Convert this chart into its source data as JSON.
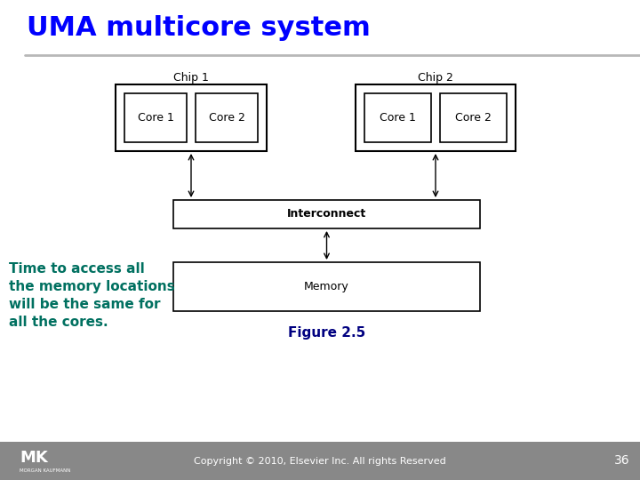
{
  "title": "UMA multicore system",
  "title_color": "#0000FF",
  "title_fontsize": 22,
  "bg_color": "#FFFFFF",
  "header_line_color": "#888888",
  "chip1_label": "Chip 1",
  "chip2_label": "Chip 2",
  "core1_chip1_label": "Core 1",
  "core2_chip1_label": "Core 2",
  "core1_chip2_label": "Core 1",
  "core2_chip2_label": "Core 2",
  "interconnect_label": "Interconnect",
  "memory_label": "Memory",
  "figure_label": "Figure 2.5",
  "side_text": [
    "Time to access all",
    "the memory locations",
    "will be the same for",
    "all the cores."
  ],
  "side_text_color": "#007060",
  "copyright_text": "Copyright © 2010, Elsevier Inc. All rights Reserved",
  "page_number": "36",
  "footer_bg_color": "#888888",
  "box_edge_color": "#000000",
  "box_fill_color": "#FFFFFF",
  "label_fontsize": 9,
  "chip_label_fontsize": 9,
  "figure_label_fontsize": 11,
  "figure_label_color": "#000080",
  "side_text_fontsize": 11
}
